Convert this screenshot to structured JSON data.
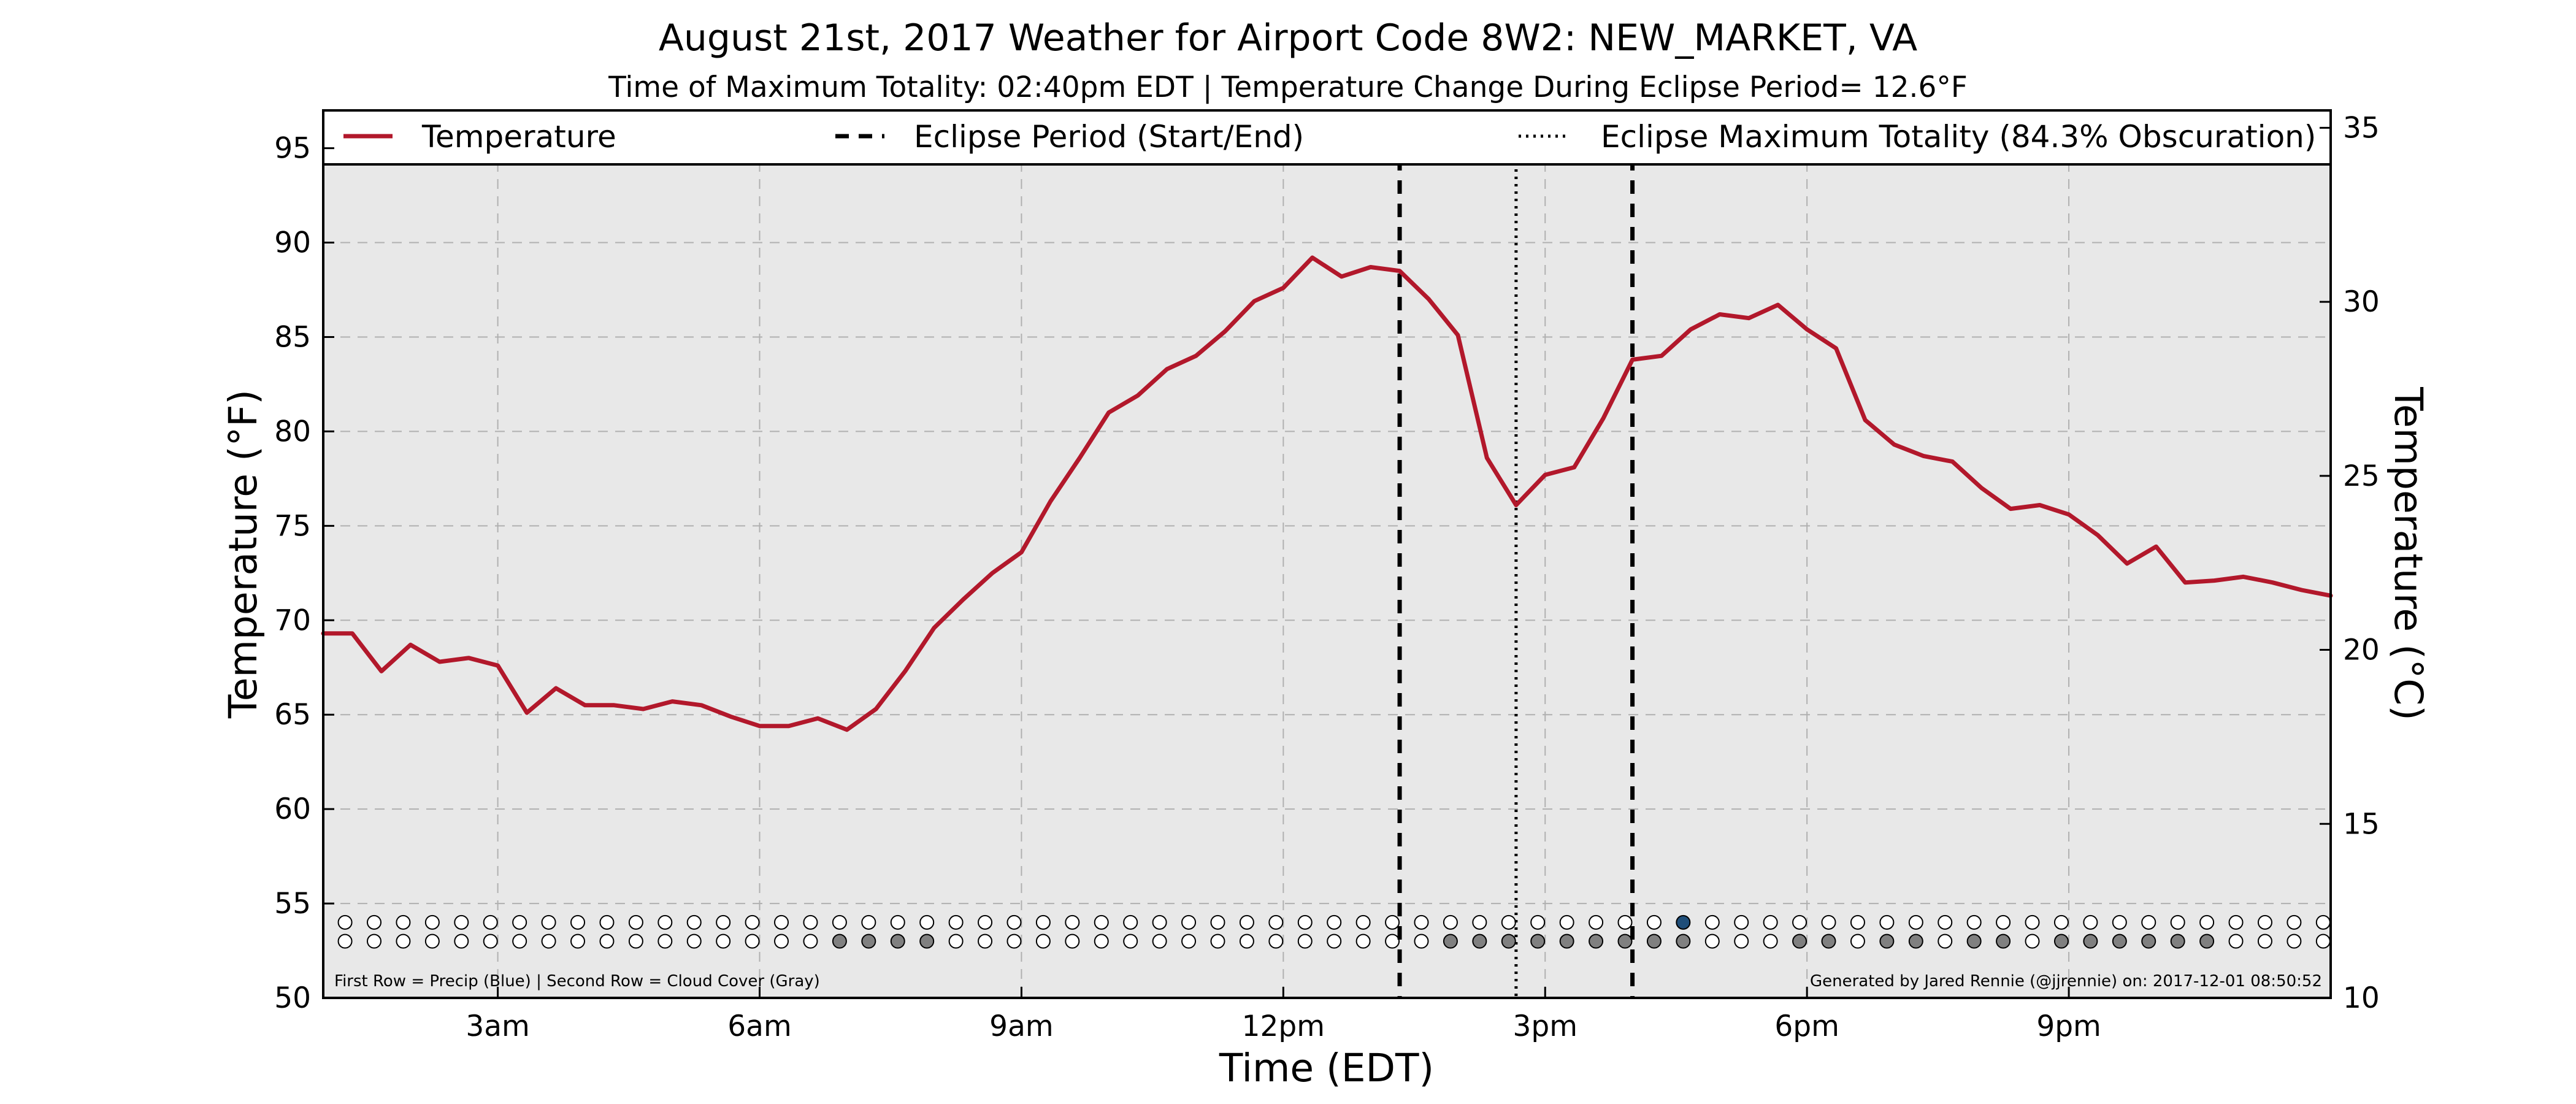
{
  "chart_data": {
    "type": "line",
    "title": "August 21st, 2017 Weather for Airport Code 8W2: NEW_MARKET, VA",
    "subtitle": "Time of Maximum Totality: 02:40pm EDT | Temperature Change During Eclipse Period= 12.6°F",
    "xlabel": "Time (EDT)",
    "ylabel": "Temperature (°F)",
    "ylabel_right": "Temperature (°C)",
    "xlim": [
      1,
      24
    ],
    "ylim": [
      50,
      97
    ],
    "ylim_right": [
      10,
      35.5
    ],
    "grid": true,
    "legend_placement": "top",
    "x_ticks": [
      {
        "value": 3,
        "label": "3am"
      },
      {
        "value": 6,
        "label": "6am"
      },
      {
        "value": 9,
        "label": "9am"
      },
      {
        "value": 12,
        "label": "12pm"
      },
      {
        "value": 15,
        "label": "3pm"
      },
      {
        "value": 18,
        "label": "6pm"
      },
      {
        "value": 21,
        "label": "9pm"
      }
    ],
    "y_ticks": [
      {
        "value": 50,
        "label": "50"
      },
      {
        "value": 55,
        "label": "55"
      },
      {
        "value": 60,
        "label": "60"
      },
      {
        "value": 65,
        "label": "65"
      },
      {
        "value": 70,
        "label": "70"
      },
      {
        "value": 75,
        "label": "75"
      },
      {
        "value": 80,
        "label": "80"
      },
      {
        "value": 85,
        "label": "85"
      },
      {
        "value": 90,
        "label": "90"
      },
      {
        "value": 95,
        "label": "95"
      }
    ],
    "y_ticks_right": [
      {
        "value": 10,
        "label": "10"
      },
      {
        "value": 15,
        "label": "15"
      },
      {
        "value": 20,
        "label": "20"
      },
      {
        "value": 25,
        "label": "25"
      },
      {
        "value": 30,
        "label": "30"
      },
      {
        "value": 35,
        "label": "35"
      }
    ],
    "series": [
      {
        "name": "Temperature",
        "color": "#b2182b",
        "x": [
          1.0,
          1.333,
          1.667,
          2.0,
          2.333,
          2.667,
          3.0,
          3.333,
          3.667,
          4.0,
          4.333,
          4.667,
          5.0,
          5.333,
          5.667,
          6.0,
          6.333,
          6.667,
          7.0,
          7.333,
          7.667,
          8.0,
          8.333,
          8.667,
          9.0,
          9.333,
          9.667,
          10.0,
          10.333,
          10.667,
          11.0,
          11.333,
          11.667,
          12.0,
          12.333,
          12.667,
          13.0,
          13.333,
          13.667,
          14.0,
          14.333,
          14.667,
          15.0,
          15.333,
          15.667,
          16.0,
          16.333,
          16.667,
          17.0,
          17.333,
          17.667,
          18.0,
          18.333,
          18.667,
          19.0,
          19.333,
          19.667,
          20.0,
          20.333,
          20.667,
          21.0,
          21.333,
          21.667,
          22.0,
          22.333,
          22.667,
          23.0,
          23.333,
          23.667,
          24.0
        ],
        "y": [
          69.3,
          69.3,
          67.3,
          68.7,
          67.8,
          68.0,
          67.6,
          65.1,
          66.4,
          65.5,
          65.5,
          65.3,
          65.7,
          65.5,
          64.9,
          64.4,
          64.4,
          64.8,
          64.2,
          65.3,
          67.3,
          69.6,
          71.1,
          72.5,
          73.6,
          76.3,
          78.6,
          81.0,
          81.9,
          83.3,
          84.0,
          85.3,
          86.9,
          87.6,
          89.2,
          88.2,
          88.7,
          88.5,
          87.0,
          85.1,
          78.6,
          76.1,
          77.7,
          78.1,
          80.7,
          83.8,
          84.0,
          85.4,
          86.2,
          86.0,
          86.7,
          85.4,
          84.4,
          80.6,
          79.3,
          78.7,
          78.4,
          77.0,
          75.9,
          76.1,
          75.6,
          74.5,
          73.0,
          73.9,
          72.0,
          72.1,
          72.3,
          72.0,
          71.6,
          71.3
        ]
      }
    ],
    "eclipse_start": 13.333,
    "eclipse_end": 16.0,
    "eclipse_max": 14.667,
    "legend": [
      {
        "key": "temperature",
        "label": "Temperature",
        "style": "solid"
      },
      {
        "key": "eclipse_period",
        "label": "Eclipse Period (Start/End)",
        "style": "dashed"
      },
      {
        "key": "eclipse_max",
        "label": "Eclipse Maximum Totality (84.3% Obscuration)",
        "style": "dotted"
      }
    ],
    "marker_rows": {
      "x_start": 1.25,
      "x_step": 0.3333,
      "count": 69,
      "precip_y": 54.0,
      "cloud_y": 53.0,
      "precip_color": "#1f4e79",
      "cloud_color": "#808080",
      "empty_color": "#ffffff",
      "precip_filled": [
        46
      ],
      "cloud_filled": [
        17,
        18,
        19,
        20,
        38,
        39,
        40,
        41,
        42,
        43,
        44,
        45,
        46,
        50,
        51,
        53,
        54,
        56,
        57,
        59,
        60,
        61,
        62,
        63,
        64
      ]
    },
    "note_left": "First Row = Precip (Blue) | Second Row = Cloud Cover (Gray)",
    "note_right": "Generated by Jared Rennie (@jjrennie) on: 2017-12-01 08:50:52"
  },
  "colors": {
    "plot_background": "#e8e8e8",
    "grid": "#b0b0b0",
    "line": "#b2182b",
    "vertical_lines": "#000000"
  }
}
